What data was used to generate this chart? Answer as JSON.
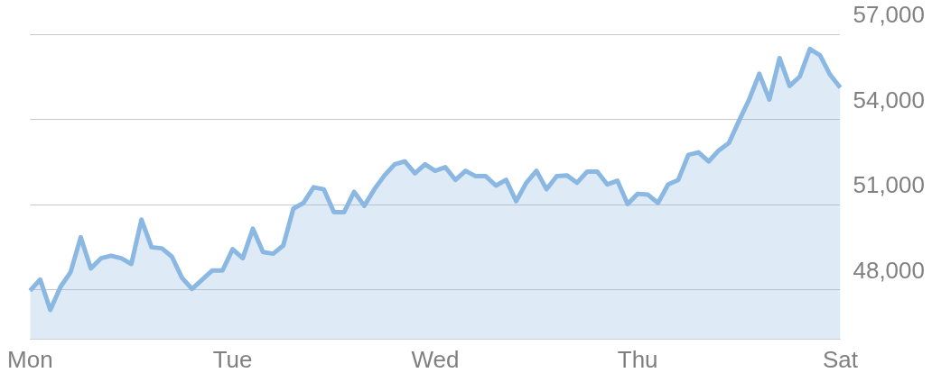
{
  "chart_data": {
    "type": "area",
    "categories": [
      "Mon",
      null,
      null,
      null,
      null,
      null,
      null,
      null,
      null,
      null,
      null,
      null,
      null,
      null,
      null,
      null,
      null,
      null,
      null,
      null,
      "Tue",
      null,
      null,
      null,
      null,
      null,
      null,
      null,
      null,
      null,
      null,
      null,
      null,
      null,
      null,
      null,
      null,
      null,
      null,
      null,
      "Wed",
      null,
      null,
      null,
      null,
      null,
      null,
      null,
      null,
      null,
      null,
      null,
      null,
      null,
      null,
      null,
      null,
      null,
      null,
      null,
      "Thu",
      null,
      null,
      null,
      null,
      null,
      null,
      null,
      null,
      null,
      null,
      null,
      null,
      null,
      null,
      null,
      null,
      null,
      null,
      null,
      "Sat"
    ],
    "series": [
      {
        "color": "#8ab8e2",
        "values": [
          47970,
          48360,
          47290,
          48100,
          48620,
          49850,
          48750,
          49110,
          49200,
          49110,
          48910,
          50470,
          49500,
          49460,
          49170,
          48420,
          48030,
          48360,
          48680,
          48680,
          49430,
          49110,
          50150,
          49330,
          49270,
          49560,
          50860,
          51060,
          51610,
          51540,
          50730,
          50730,
          51450,
          50960,
          51540,
          52030,
          52420,
          52520,
          52100,
          52420,
          52190,
          52320,
          51870,
          52190,
          52000,
          52000,
          51670,
          51870,
          51120,
          51770,
          52190,
          51540,
          52000,
          52030,
          51770,
          52160,
          52160,
          51710,
          51840,
          51020,
          51380,
          51350,
          51060,
          51710,
          51870,
          52750,
          52840,
          52520,
          52910,
          53170,
          53950,
          54700,
          55610,
          54700,
          56160,
          55180,
          55510,
          56480,
          56260,
          55570,
          55120
        ]
      }
    ],
    "ylim": [
      46250,
      57000
    ],
    "yticks": [
      {
        "value": 48000,
        "label": "48,000"
      },
      {
        "value": 51000,
        "label": "51,000"
      },
      {
        "value": 54000,
        "label": "54,000"
      },
      {
        "value": 57000,
        "label": "57,000"
      }
    ],
    "grid": "y",
    "marker": "none",
    "line_style": "solid"
  }
}
